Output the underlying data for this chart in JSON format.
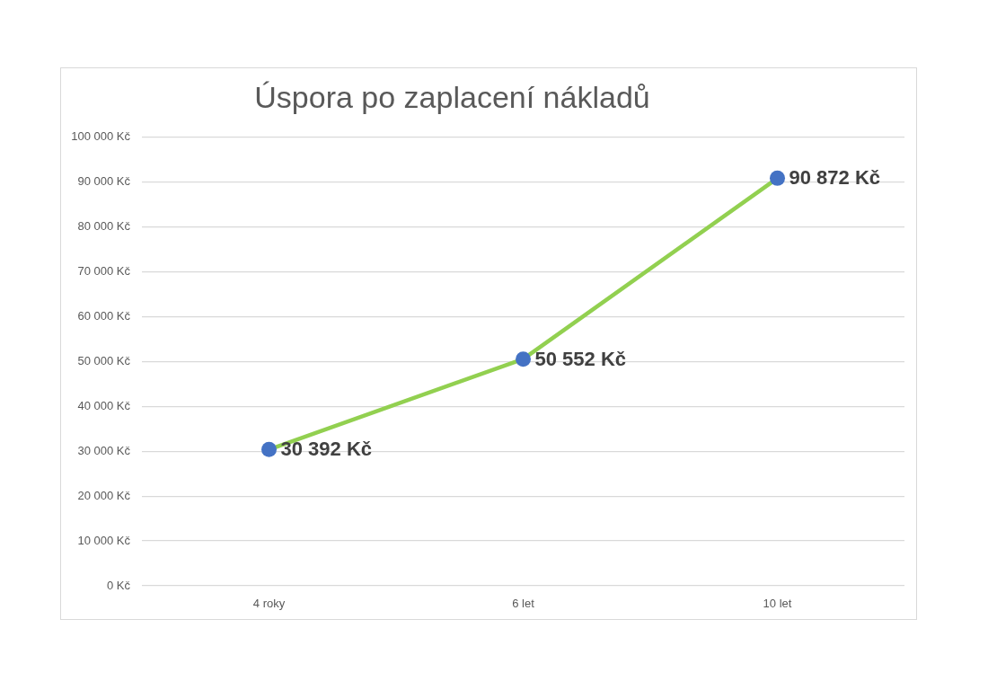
{
  "chart_data": {
    "type": "line",
    "title": "Úspora po zaplacení nákladů",
    "categories": [
      "4 roky",
      "6 let",
      "10 let"
    ],
    "values": [
      30392,
      50552,
      90872
    ],
    "color": "#92d050",
    "colors": [
      "#4472c4",
      "#4472c4",
      "#4472c4"
    ],
    "value_labels": [
      "30 392 Kč",
      "50 552 Kč",
      "90 872 Kč"
    ],
    "ylim": [
      0,
      100000
    ],
    "yticks": [
      {
        "value": 0,
        "label": "0 Kč"
      },
      {
        "value": 10000,
        "label": "10 000 Kč"
      },
      {
        "value": 20000,
        "label": "20 000 Kč"
      },
      {
        "value": 30000,
        "label": "30 000 Kč"
      },
      {
        "value": 40000,
        "label": "40 000 Kč"
      },
      {
        "value": 50000,
        "label": "50 000 Kč"
      },
      {
        "value": 60000,
        "label": "60 000 Kč"
      },
      {
        "value": 70000,
        "label": "70 000 Kč"
      },
      {
        "value": 80000,
        "label": "80 000 Kč"
      },
      {
        "value": 90000,
        "label": "90 000 Kč"
      },
      {
        "value": 100000,
        "label": "100 000 Kč"
      }
    ],
    "grid": "y",
    "legend": false,
    "marker": "circle"
  }
}
